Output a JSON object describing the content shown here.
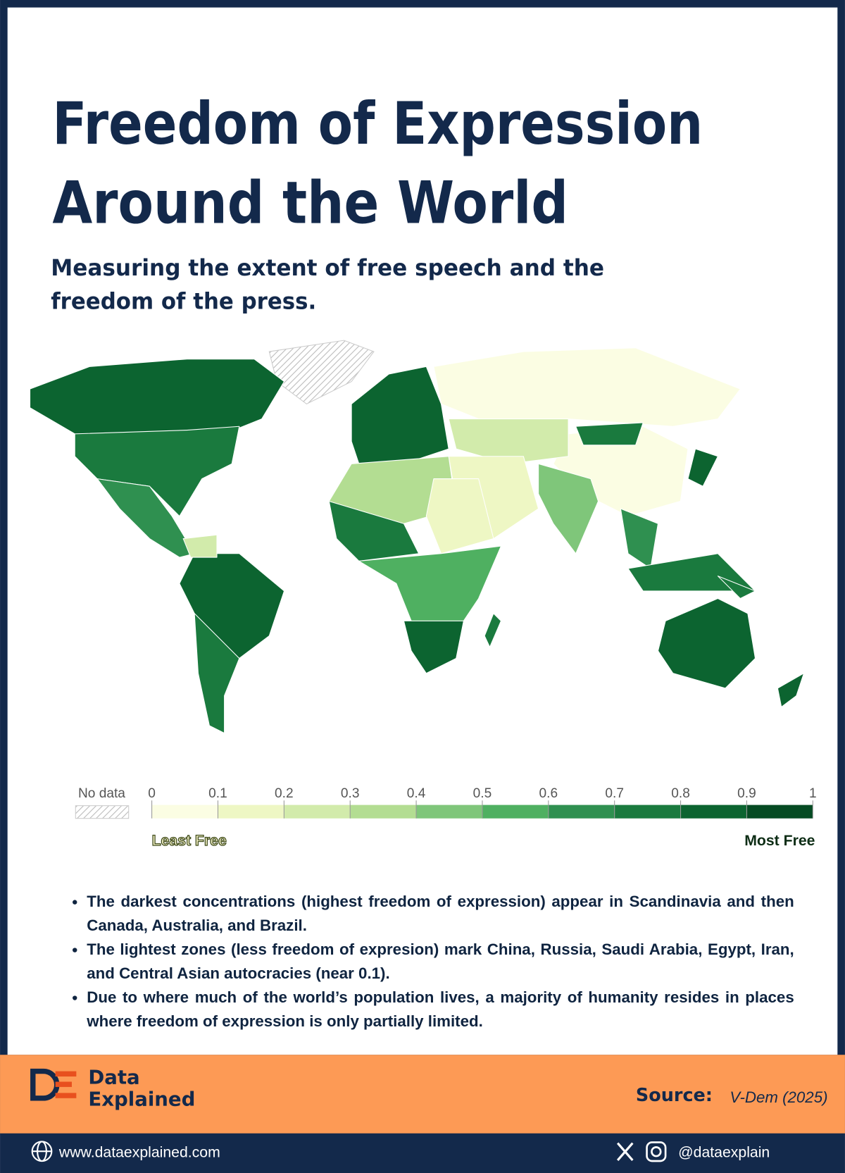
{
  "header": {
    "title_lines": [
      "Freedom of Expression",
      "Around the World"
    ],
    "subtitle_lines": [
      "Measuring the extent of free speech and the",
      "freedom of the press."
    ]
  },
  "map": {
    "regions": [
      {
        "value": 0.85
      },
      {
        "value": 0.75
      },
      {
        "value": 0.6
      },
      {
        "value": 0.88
      },
      {
        "value": 0.2
      },
      {
        "value": 0.75
      },
      {
        "value": 0.88
      },
      {
        "value": 0.08
      },
      {
        "value": 0.06
      },
      {
        "value": 0.75
      },
      {
        "value": 0.25
      },
      {
        "value": 0.1
      },
      {
        "value": 0.45
      },
      {
        "value": 0.6
      },
      {
        "value": 0.75
      },
      {
        "value": 0.85
      },
      {
        "value": 0.35
      },
      {
        "value": 0.15
      },
      {
        "value": 0.7
      },
      {
        "value": 0.55
      },
      {
        "value": 0.8
      },
      {
        "value": 0.7
      },
      {
        "value": 0.88
      },
      {
        "value": 0.85
      },
      {
        "value": 0.7
      }
    ]
  },
  "legend": {
    "no_data_label": "No data",
    "ticks": [
      0,
      0.1,
      0.2,
      0.3,
      0.4,
      0.5,
      0.6,
      0.7,
      0.8,
      0.9,
      1
    ],
    "colors": [
      "#fbfde3",
      "#eef7c4",
      "#d2ebab",
      "#b3dd92",
      "#7fc67a",
      "#4fb061",
      "#2f9050",
      "#1a7a3e",
      "#0c6430",
      "#064b23"
    ],
    "low_label": "Least Free",
    "high_label": "Most Free"
  },
  "notes": [
    "The darkest concentrations (highest freedom of expression) appear in Scandinavia and then Canada, Australia, and Brazil.",
    "The lightest zones (less freedom of expresion) mark China, Russia, Saudi Arabia, Egypt, Iran, and Central Asian autocracies (near 0.1).",
    "Due to where much of the world’s population lives, a majority of humanity resides in places where freedom of expression is only partially limited."
  ],
  "footer": {
    "brand_lines": [
      "Data",
      "Explained"
    ],
    "source_label": "Source:",
    "source": "V-Dem (2025)",
    "website": "www.dataexplained.com",
    "handle": "@dataexplain"
  }
}
